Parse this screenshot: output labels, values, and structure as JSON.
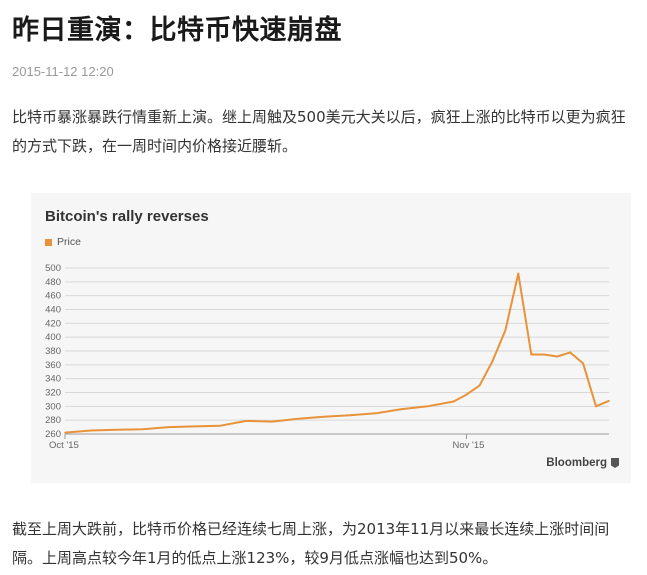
{
  "article": {
    "title": "昨日重演：比特币快速崩盘",
    "date": "2015-11-12 12:20",
    "para1": "比特币暴涨暴跌行情重新上演。继上周触及500美元大关以后，疯狂上涨的比特币以更为疯狂的方式下跌，在一周时间内价格接近腰斩。",
    "para2": "截至上周大跌前，比特币价格已经连续七周上涨，为2013年11月以来最长连续上涨时间间隔。上周高点较今年1月的低点上涨123%，较9月低点涨幅也达到50%。"
  },
  "brand": "Bloomberg",
  "colors": {
    "series": "#e8923a",
    "panel": "#f6f6f6",
    "grid": "#d8d8d8"
  },
  "chart_data": {
    "type": "line",
    "title": "Bitcoin's rally reverses",
    "legend": [
      "Price"
    ],
    "xlabel": "",
    "ylabel": "",
    "x_ticks": [
      "Oct '15",
      "Nov '15"
    ],
    "y_ticks": [
      260,
      280,
      300,
      320,
      340,
      360,
      380,
      400,
      420,
      440,
      460,
      480,
      500
    ],
    "ylim": [
      260,
      500
    ],
    "x": [
      "2015-10-01",
      "2015-10-03",
      "2015-10-05",
      "2015-10-07",
      "2015-10-09",
      "2015-10-11",
      "2015-10-13",
      "2015-10-15",
      "2015-10-17",
      "2015-10-19",
      "2015-10-21",
      "2015-10-23",
      "2015-10-25",
      "2015-10-27",
      "2015-10-29",
      "2015-10-31",
      "2015-11-01",
      "2015-11-02",
      "2015-11-03",
      "2015-11-04",
      "2015-11-05",
      "2015-11-06",
      "2015-11-07",
      "2015-11-08",
      "2015-11-09",
      "2015-11-10",
      "2015-11-11",
      "2015-11-12"
    ],
    "series": [
      {
        "name": "Price",
        "values": [
          262,
          265,
          266,
          267,
          270,
          271,
          272,
          279,
          278,
          282,
          285,
          287,
          290,
          296,
          300,
          307,
          317,
          330,
          365,
          410,
          492,
          375,
          375,
          372,
          378,
          362,
          300,
          308
        ]
      }
    ],
    "grid": true,
    "legend_position": "top-left"
  }
}
